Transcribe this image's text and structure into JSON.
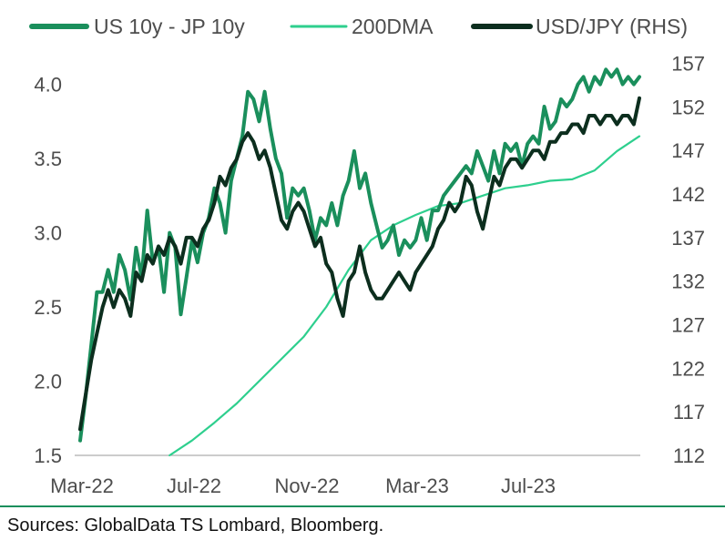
{
  "chart_data": {
    "type": "line",
    "x_labels": [
      "Mar-22",
      "Jul-22",
      "Nov-22",
      "Mar-23",
      "Jul-23"
    ],
    "x_range": [
      0,
      100
    ],
    "ylim_left": [
      1.5,
      4.2
    ],
    "ylim_right": [
      112,
      158
    ],
    "yticks_left": [
      "1.5",
      "2.0",
      "2.5",
      "3.0",
      "3.5",
      "4.0"
    ],
    "yticks_right": [
      "112",
      "117",
      "122",
      "127",
      "132",
      "137",
      "142",
      "147",
      "152",
      "157"
    ],
    "series": [
      {
        "name": "US 10y - JP 10y",
        "axis": "left",
        "color": "#1a8f5c",
        "x": [
          0,
          1,
          2,
          3,
          4,
          5,
          6,
          7,
          8,
          9,
          10,
          11,
          12,
          13,
          14,
          15,
          16,
          17,
          18,
          19,
          20,
          21,
          22,
          23,
          24,
          25,
          26,
          27,
          28,
          29,
          30,
          31,
          32,
          33,
          34,
          35,
          36,
          37,
          38,
          39,
          40,
          41,
          42,
          43,
          44,
          45,
          46,
          47,
          48,
          49,
          50,
          51,
          52,
          53,
          54,
          55,
          56,
          57,
          58,
          59,
          60,
          61,
          62,
          63,
          64,
          65,
          66,
          67,
          68,
          69,
          70,
          71,
          72,
          73,
          74,
          75,
          76,
          77,
          78,
          79,
          80,
          81,
          82,
          83,
          84,
          85,
          86,
          87,
          88,
          89,
          90,
          91,
          92,
          93,
          94,
          95,
          96,
          97,
          98,
          99,
          100
        ],
        "values": [
          1.6,
          1.9,
          2.25,
          2.6,
          2.6,
          2.75,
          2.6,
          2.85,
          2.75,
          2.55,
          2.9,
          2.7,
          3.15,
          2.8,
          2.9,
          2.6,
          3.0,
          2.9,
          2.45,
          2.7,
          2.95,
          2.8,
          3.0,
          3.1,
          3.3,
          3.2,
          3.0,
          3.35,
          3.5,
          3.65,
          3.95,
          3.9,
          3.75,
          3.95,
          3.7,
          3.5,
          3.4,
          3.1,
          3.3,
          3.25,
          3.3,
          3.15,
          2.95,
          3.1,
          3.05,
          3.2,
          3.05,
          3.25,
          3.35,
          3.55,
          3.3,
          3.4,
          3.2,
          3.05,
          2.9,
          2.95,
          3.05,
          2.85,
          2.95,
          2.9,
          2.95,
          3.1,
          2.95,
          3.15,
          3.15,
          3.25,
          3.3,
          3.35,
          3.4,
          3.45,
          3.4,
          3.55,
          3.45,
          3.35,
          3.55,
          3.4,
          3.6,
          3.55,
          3.6,
          3.45,
          3.6,
          3.65,
          3.6,
          3.85,
          3.7,
          3.75,
          3.9,
          3.85,
          3.9,
          4.0,
          4.05,
          3.95,
          4.05,
          4.0,
          4.1,
          4.05,
          4.1,
          4.0,
          4.05,
          4.0,
          4.05
        ]
      },
      {
        "name": "200DMA",
        "axis": "left",
        "color": "#2ecf8e",
        "x": [
          16,
          20,
          24,
          28,
          32,
          36,
          40,
          44,
          48,
          52,
          56,
          60,
          64,
          68,
          72,
          76,
          80,
          84,
          88,
          92,
          96,
          100
        ],
        "values": [
          1.5,
          1.6,
          1.72,
          1.85,
          2.0,
          2.15,
          2.3,
          2.5,
          2.75,
          2.95,
          3.05,
          3.12,
          3.18,
          3.2,
          3.25,
          3.3,
          3.32,
          3.35,
          3.36,
          3.42,
          3.55,
          3.65
        ]
      },
      {
        "name": "USD/JPY (RHS)",
        "axis": "right",
        "color": "#0c2e1e",
        "x": [
          0,
          1,
          2,
          3,
          4,
          5,
          6,
          7,
          8,
          9,
          10,
          11,
          12,
          13,
          14,
          15,
          16,
          17,
          18,
          19,
          20,
          21,
          22,
          23,
          24,
          25,
          26,
          27,
          28,
          29,
          30,
          31,
          32,
          33,
          34,
          35,
          36,
          37,
          38,
          39,
          40,
          41,
          42,
          43,
          44,
          45,
          46,
          47,
          48,
          49,
          50,
          51,
          52,
          53,
          54,
          55,
          56,
          57,
          58,
          59,
          60,
          61,
          62,
          63,
          64,
          65,
          66,
          67,
          68,
          69,
          70,
          71,
          72,
          73,
          74,
          75,
          76,
          77,
          78,
          79,
          80,
          81,
          82,
          83,
          84,
          85,
          86,
          87,
          88,
          89,
          90,
          91,
          92,
          93,
          94,
          95,
          96,
          97,
          98,
          99,
          100
        ],
        "values": [
          115,
          119,
          123,
          126,
          129,
          131,
          129,
          131,
          130,
          128,
          133,
          132,
          135,
          134,
          136,
          135,
          137,
          136,
          134,
          137,
          137,
          136,
          138,
          139,
          141,
          144,
          143,
          145,
          146,
          148,
          149,
          148,
          146,
          147,
          145,
          142,
          139,
          138,
          140,
          141,
          140,
          138,
          136,
          137,
          134,
          133,
          130,
          128,
          132,
          133,
          136,
          133,
          131,
          130,
          130,
          131,
          132,
          133,
          132,
          131,
          133,
          134,
          135,
          136,
          138,
          139,
          141,
          140,
          141,
          144,
          143,
          140,
          138,
          141,
          144,
          143,
          145,
          146,
          146,
          145,
          146,
          147,
          147,
          146,
          148,
          148,
          149,
          149,
          150,
          150,
          149,
          151,
          151,
          150,
          151,
          151,
          150,
          151,
          151,
          150,
          153
        ]
      }
    ]
  },
  "footer": {
    "source": "Sources: GlobalData TS Lombard, Bloomberg."
  },
  "colors": {
    "axis": "#999999",
    "rule": "#1a8f5c",
    "text": "#4d4d4d"
  }
}
